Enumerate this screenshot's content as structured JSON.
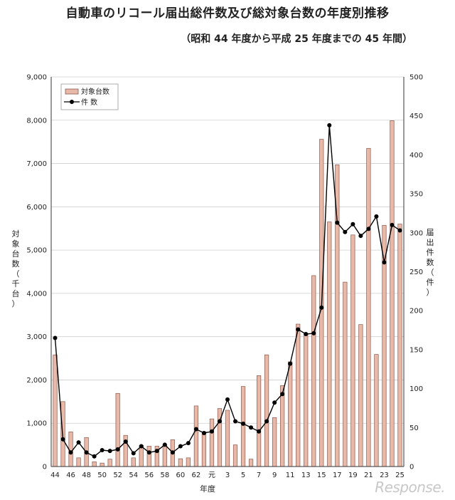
{
  "chart_data": {
    "type": "bar+line",
    "title": "自動車のリコール届出総件数及び総対象台数の年度別推移",
    "subtitle": "（昭和 44 年度から平成 25 年度までの 45 年間）",
    "xlabel": "年度",
    "ylabel_left": "対象台数（千台）",
    "ylabel_right": "届出件数（件）",
    "ylim_left": [
      0,
      9000
    ],
    "ylim_right": [
      0,
      500
    ],
    "yticks_left": [
      "0",
      "1,000",
      "2,000",
      "3,000",
      "4,000",
      "5,000",
      "6,000",
      "7,000",
      "8,000",
      "9,000"
    ],
    "yticks_right": [
      "0",
      "50",
      "100",
      "150",
      "200",
      "250",
      "300",
      "350",
      "400",
      "450",
      "500"
    ],
    "grid": true,
    "legend_position": "top-left",
    "x": [
      "44",
      "45",
      "46",
      "47",
      "48",
      "49",
      "50",
      "51",
      "52",
      "53",
      "54",
      "55",
      "56",
      "57",
      "58",
      "59",
      "60",
      "61",
      "62",
      "63",
      "元",
      "2",
      "3",
      "4",
      "5",
      "6",
      "7",
      "8",
      "9",
      "10",
      "11",
      "12",
      "13",
      "14",
      "15",
      "16",
      "17",
      "18",
      "19",
      "20",
      "21",
      "22",
      "23",
      "24",
      "25"
    ],
    "x_tick_labels": [
      "44",
      "46",
      "48",
      "50",
      "52",
      "54",
      "56",
      "58",
      "60",
      "62",
      "元",
      "3",
      "5",
      "7",
      "9",
      "11",
      "13",
      "15",
      "17",
      "19",
      "21",
      "23",
      "25"
    ],
    "series": [
      {
        "name": "対象台数",
        "type": "bar",
        "axis": "left",
        "values": [
          2580,
          1500,
          800,
          200,
          670,
          110,
          80,
          170,
          1690,
          720,
          200,
          490,
          470,
          470,
          500,
          620,
          180,
          200,
          1400,
          800,
          1100,
          1340,
          1300,
          500,
          1850,
          170,
          2100,
          2580,
          1130,
          1870,
          2420,
          3290,
          3050,
          4410,
          7560,
          5650,
          6970,
          4260,
          5350,
          3280,
          7350,
          2590,
          5570,
          7990,
          5600
        ]
      },
      {
        "name": "件 数",
        "type": "line",
        "axis": "right",
        "values": [
          165,
          35,
          18,
          31,
          18,
          13,
          21,
          20,
          22,
          32,
          17,
          26,
          18,
          20,
          28,
          18,
          26,
          30,
          48,
          43,
          45,
          58,
          86,
          58,
          55,
          50,
          45,
          58,
          82,
          93,
          132,
          176,
          170,
          171,
          204,
          438,
          313,
          301,
          311,
          296,
          305,
          321,
          262,
          310,
          303
        ]
      }
    ],
    "colors": {
      "bar_fill": "#e8b8a8",
      "bar_stroke": "#8a5a4e",
      "line": "#000000",
      "grid": "#cfcfcf"
    }
  },
  "watermark": "Response."
}
